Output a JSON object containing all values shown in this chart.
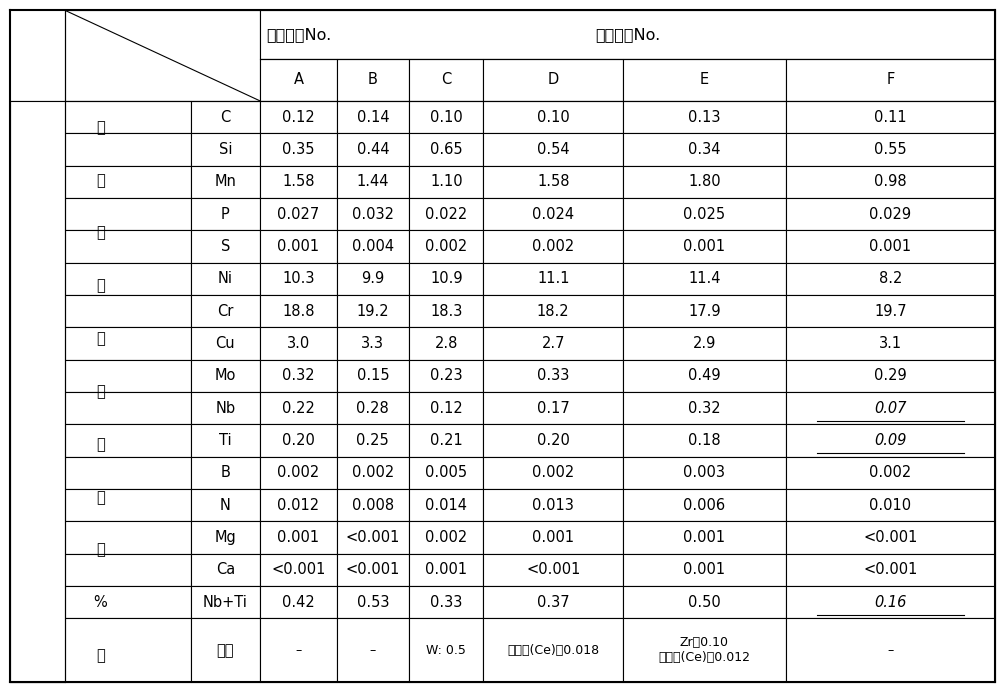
{
  "title": "钢材成分No.",
  "col_header": [
    "A",
    "B",
    "C",
    "D",
    "E",
    "F"
  ],
  "row_header": [
    "C",
    "Si",
    "Mn",
    "P",
    "S",
    "Ni",
    "Cr",
    "Cu",
    "Mo",
    "Nb",
    "Ti",
    "B",
    "N",
    "Mg",
    "Ca",
    "Nb+Ti",
    "其他"
  ],
  "left_label_chars": [
    "化",
    "学",
    "成",
    "分",
    "组",
    "成",
    "（",
    "质",
    "量",
    "%",
    "）"
  ],
  "data": [
    [
      "0.12",
      "0.14",
      "0.10",
      "0.10",
      "0.13",
      "0.11"
    ],
    [
      "0.35",
      "0.44",
      "0.65",
      "0.54",
      "0.34",
      "0.55"
    ],
    [
      "1.58",
      "1.44",
      "1.10",
      "1.58",
      "1.80",
      "0.98"
    ],
    [
      "0.027",
      "0.032",
      "0.022",
      "0.024",
      "0.025",
      "0.029"
    ],
    [
      "0.001",
      "0.004",
      "0.002",
      "0.002",
      "0.001",
      "0.001"
    ],
    [
      "10.3",
      "9.9",
      "10.9",
      "11.1",
      "11.4",
      "8.2"
    ],
    [
      "18.8",
      "19.2",
      "18.3",
      "18.2",
      "17.9",
      "19.7"
    ],
    [
      "3.0",
      "3.3",
      "2.8",
      "2.7",
      "2.9",
      "3.1"
    ],
    [
      "0.32",
      "0.15",
      "0.23",
      "0.33",
      "0.49",
      "0.29"
    ],
    [
      "0.22",
      "0.28",
      "0.12",
      "0.17",
      "0.32",
      "0.07"
    ],
    [
      "0.20",
      "0.25",
      "0.21",
      "0.20",
      "0.18",
      "0.09"
    ],
    [
      "0.002",
      "0.002",
      "0.005",
      "0.002",
      "0.003",
      "0.002"
    ],
    [
      "0.012",
      "0.008",
      "0.014",
      "0.013",
      "0.006",
      "0.010"
    ],
    [
      "0.001",
      "<0.001",
      "0.002",
      "0.001",
      "0.001",
      "<0.001"
    ],
    [
      "<0.001",
      "<0.001",
      "0.001",
      "<0.001",
      "0.001",
      "<0.001"
    ],
    [
      "0.42",
      "0.53",
      "0.33",
      "0.37",
      "0.50",
      "0.16"
    ],
    [
      "–",
      "–",
      "W: 0.5",
      "稀土类(Ce)：0.018",
      "Zr：0.10\n稀土类(Ce)：0.012",
      "–"
    ]
  ],
  "italic_underline_cells": [
    [
      9,
      5
    ],
    [
      10,
      5
    ],
    [
      15,
      5
    ]
  ],
  "background_color": "#ffffff",
  "line_color": "#000000",
  "font_size": 10.5,
  "small_font_size": 9.0,
  "title_font_size": 11.5
}
